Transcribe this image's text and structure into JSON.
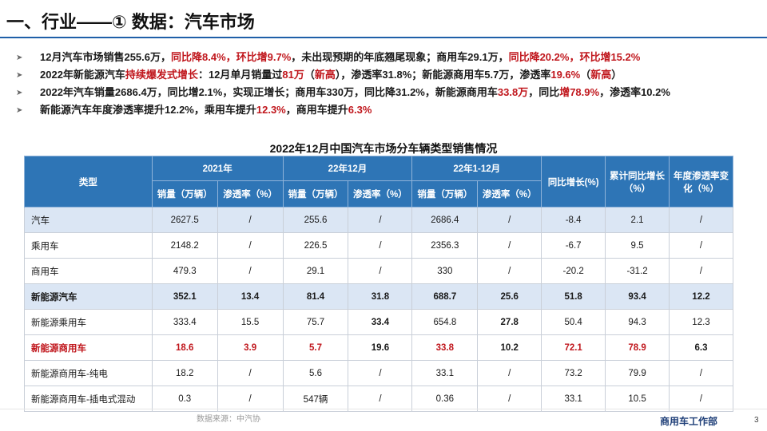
{
  "header": {
    "title": "一、行业——① 数据：汽车市场"
  },
  "bullets": [
    [
      {
        "t": "12月汽车市场销售255.6万，"
      },
      {
        "t": "同比降8.4%，环比增9.7%",
        "c": "red"
      },
      {
        "t": "，未出现预期的年底翘尾现象；商用车29.1万，"
      },
      {
        "t": "同比降20.2%，环比增15.2%",
        "c": "red"
      }
    ],
    [
      {
        "t": "2022年新能源汽车"
      },
      {
        "t": "持续爆发式增长",
        "c": "red"
      },
      {
        "t": "：12月单月销量过"
      },
      {
        "t": "81万",
        "c": "red"
      },
      {
        "t": "（"
      },
      {
        "t": "新高",
        "c": "red"
      },
      {
        "t": "），渗透率31.8%；新能源商用车5.7万，渗透率"
      },
      {
        "t": "19.6%",
        "c": "red"
      },
      {
        "t": "（"
      },
      {
        "t": "新高",
        "c": "red"
      },
      {
        "t": "）"
      }
    ],
    [
      {
        "t": "2022年汽车销量2686.4万，同比增2.1%，实现正增长；商用车330万，同比降31.2%，新能源商用车"
      },
      {
        "t": "33.8万",
        "c": "red"
      },
      {
        "t": "，同比"
      },
      {
        "t": "增78.9%",
        "c": "red"
      },
      {
        "t": "，渗透率10.2%"
      }
    ],
    [
      {
        "t": "新能源汽车年度渗透率提升12.2%，乘用车提升"
      },
      {
        "t": "12.3%",
        "c": "red"
      },
      {
        "t": "，商用车提升"
      },
      {
        "t": "6.3%",
        "c": "red"
      }
    ]
  ],
  "table": {
    "title": "2022年12月中国汽车市场分车辆类型销售情况",
    "head": {
      "type": "类型",
      "g2021": "2021年",
      "gdec": "22年12月",
      "gyear": "22年1-12月",
      "yoy": "同比增长(%)",
      "cum": "累计同比增长（%）",
      "pen_change": "年度渗透率变化（%）",
      "sales": "销量（万辆）",
      "pen": "渗透率（%）"
    },
    "rows": [
      {
        "name": "汽车",
        "c": [
          "2627.5",
          "/",
          "255.6",
          "/",
          "2686.4",
          "/",
          "-8.4",
          "2.1",
          "/"
        ]
      },
      {
        "name": "乘用车",
        "c": [
          "2148.2",
          "/",
          "226.5",
          "/",
          "2356.3",
          "/",
          "-6.7",
          "9.5",
          "/"
        ]
      },
      {
        "name": "商用车",
        "c": [
          "479.3",
          "/",
          "29.1",
          "/",
          "330",
          "/",
          "-20.2",
          "-31.2",
          "/"
        ]
      },
      {
        "name": "新能源汽车",
        "c": [
          "352.1",
          "13.4",
          "81.4",
          "31.8",
          "688.7",
          "25.6",
          "51.8",
          "93.4",
          "12.2"
        ]
      },
      {
        "name": "新能源乘用车",
        "c": [
          "333.4",
          "15.5",
          "75.7",
          "33.4",
          "654.8",
          "27.8",
          "50.4",
          "94.3",
          "12.3"
        ]
      },
      {
        "name": "新能源商用车",
        "c": [
          "18.6",
          "3.9",
          "5.7",
          "19.6",
          "33.8",
          "10.2",
          "72.1",
          "78.9",
          "6.3"
        ]
      },
      {
        "name": "新能源商用车-纯电",
        "c": [
          "18.2",
          "/",
          "5.6",
          "/",
          "33.1",
          "/",
          "73.2",
          "79.9",
          "/"
        ]
      },
      {
        "name": "新能源商用车-插电式混动",
        "c": [
          "0.3",
          "/",
          "547辆",
          "/",
          "0.36",
          "/",
          "33.1",
          "10.5",
          "/"
        ]
      }
    ]
  },
  "footer": {
    "source": "数据来源：中汽协",
    "dept": "商用车工作部",
    "page": "3"
  },
  "colors": {
    "header_blue": "#2e75b6",
    "highlight_red": "#c0161c",
    "row_highlight": "#dbe6f4"
  }
}
